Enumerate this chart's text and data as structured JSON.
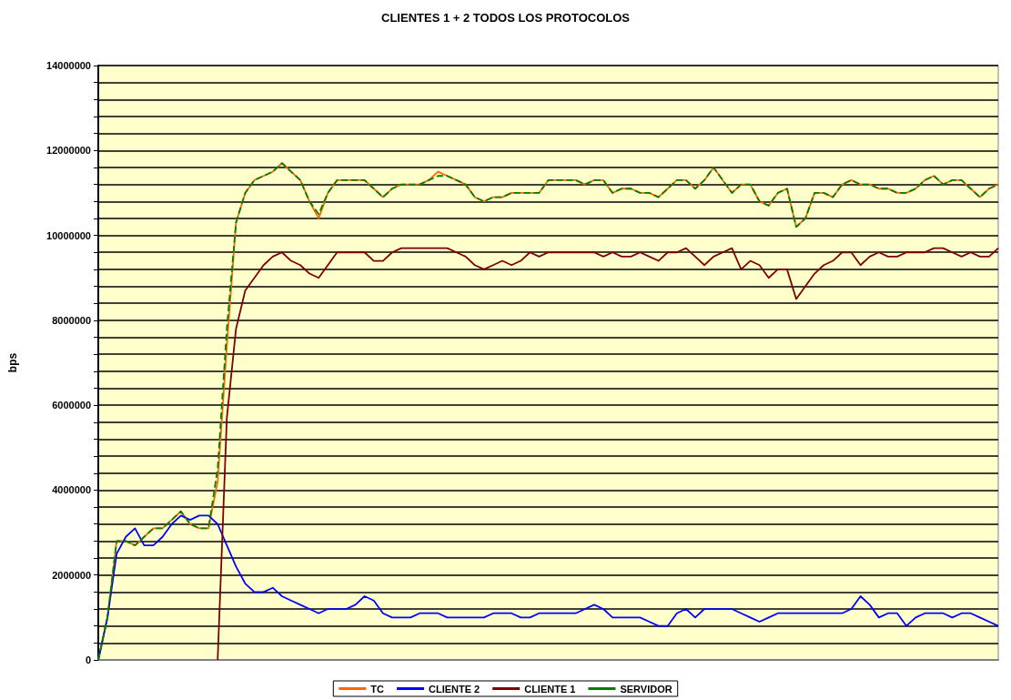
{
  "chart_data": {
    "type": "line",
    "title": "CLIENTES 1 + 2 TODOS LOS PROTOCOLOS",
    "ylabel": "bps",
    "categories": [
      null,
      null,
      null,
      null,
      null,
      null,
      null,
      null,
      null,
      null,
      null,
      null,
      null,
      null,
      null,
      null,
      null,
      null,
      null,
      null,
      null,
      null,
      null,
      null,
      null,
      null,
      null,
      null,
      null,
      null,
      null,
      null,
      null,
      null,
      null,
      null,
      null,
      null,
      null,
      null,
      null,
      null,
      null,
      null,
      null,
      null,
      null,
      null,
      null,
      null,
      null,
      null,
      null,
      null,
      null,
      null,
      null,
      null,
      null,
      null,
      null,
      null,
      null,
      null,
      null,
      null,
      null,
      null,
      null,
      null,
      null,
      null,
      null,
      null,
      null,
      null,
      null,
      null,
      null,
      null,
      null,
      null,
      null,
      null,
      null,
      null,
      null,
      null,
      null,
      null,
      null,
      null,
      null,
      null,
      null,
      null,
      null,
      null,
      null
    ],
    "series": [
      {
        "name": "TC",
        "color": "#ff6600",
        "values": [
          0,
          1000000,
          2800000,
          2800000,
          2700000,
          2900000,
          3100000,
          3100000,
          3300000,
          3500000,
          3200000,
          3100000,
          3100000,
          4200000,
          7400000,
          10300000,
          11000000,
          11300000,
          11400000,
          11500000,
          11700000,
          11500000,
          11300000,
          10800000,
          10400000,
          11000000,
          11300000,
          11300000,
          11300000,
          11300000,
          11100000,
          10900000,
          11100000,
          11200000,
          11200000,
          11200000,
          11300000,
          11500000,
          11400000,
          11300000,
          11200000,
          10900000,
          10800000,
          10900000,
          10900000,
          11000000,
          11000000,
          11000000,
          11000000,
          11300000,
          11300000,
          11300000,
          11300000,
          11200000,
          11300000,
          11300000,
          11000000,
          11100000,
          11100000,
          11000000,
          11000000,
          10900000,
          11100000,
          11300000,
          11300000,
          11100000,
          11300000,
          11600000,
          11300000,
          11000000,
          11200000,
          11200000,
          10800000,
          10700000,
          11000000,
          11100000,
          10200000,
          10400000,
          11000000,
          11000000,
          10900000,
          11200000,
          11300000,
          11200000,
          11200000,
          11100000,
          11100000,
          11000000,
          11000000,
          11100000,
          11300000,
          11400000,
          11200000,
          11300000,
          11300000,
          11100000,
          10900000,
          11100000,
          11200000
        ]
      },
      {
        "name": "CLIENTE 2",
        "color": "#0000ff",
        "values": [
          0,
          1000000,
          2500000,
          2900000,
          3100000,
          2700000,
          2700000,
          2900000,
          3200000,
          3400000,
          3300000,
          3400000,
          3400000,
          3200000,
          2700000,
          2200000,
          1800000,
          1600000,
          1600000,
          1700000,
          1500000,
          1400000,
          1300000,
          1200000,
          1100000,
          1200000,
          1200000,
          1200000,
          1300000,
          1500000,
          1400000,
          1100000,
          1000000,
          1000000,
          1000000,
          1100000,
          1100000,
          1100000,
          1000000,
          1000000,
          1000000,
          1000000,
          1000000,
          1100000,
          1100000,
          1100000,
          1000000,
          1000000,
          1100000,
          1100000,
          1100000,
          1100000,
          1100000,
          1200000,
          1300000,
          1200000,
          1000000,
          1000000,
          1000000,
          1000000,
          900000,
          800000,
          800000,
          1100000,
          1200000,
          1000000,
          1200000,
          1200000,
          1200000,
          1200000,
          1100000,
          1000000,
          900000,
          1000000,
          1100000,
          1100000,
          1100000,
          1100000,
          1100000,
          1100000,
          1100000,
          1100000,
          1200000,
          1500000,
          1300000,
          1000000,
          1100000,
          1100000,
          800000,
          1000000,
          1100000,
          1100000,
          1100000,
          1000000,
          1100000,
          1100000,
          1000000,
          900000,
          800000
        ]
      },
      {
        "name": "CLIENTE 1",
        "color": "#800000",
        "values": [
          null,
          null,
          null,
          null,
          null,
          null,
          null,
          null,
          null,
          null,
          null,
          null,
          null,
          0,
          5700000,
          7800000,
          8700000,
          9000000,
          9300000,
          9500000,
          9600000,
          9400000,
          9300000,
          9100000,
          9000000,
          9300000,
          9600000,
          9600000,
          9600000,
          9600000,
          9400000,
          9400000,
          9600000,
          9700000,
          9700000,
          9700000,
          9700000,
          9700000,
          9700000,
          9600000,
          9500000,
          9300000,
          9200000,
          9300000,
          9400000,
          9300000,
          9400000,
          9600000,
          9500000,
          9600000,
          9600000,
          9600000,
          9600000,
          9600000,
          9600000,
          9500000,
          9600000,
          9500000,
          9500000,
          9600000,
          9500000,
          9400000,
          9600000,
          9600000,
          9700000,
          9500000,
          9300000,
          9500000,
          9600000,
          9700000,
          9200000,
          9400000,
          9300000,
          9000000,
          9200000,
          9200000,
          8500000,
          8800000,
          9100000,
          9300000,
          9400000,
          9600000,
          9600000,
          9300000,
          9500000,
          9600000,
          9500000,
          9500000,
          9600000,
          9600000,
          9600000,
          9700000,
          9700000,
          9600000,
          9500000,
          9600000,
          9500000,
          9500000,
          9700000
        ]
      },
      {
        "name": "SERVIDOR",
        "color": "#008000",
        "line_style": "dashed",
        "values": [
          0,
          1000000,
          2800000,
          2800000,
          2700000,
          2900000,
          3100000,
          3100000,
          3300000,
          3500000,
          3200000,
          3100000,
          3100000,
          4500000,
          7800000,
          10300000,
          11000000,
          11300000,
          11400000,
          11500000,
          11700000,
          11500000,
          11300000,
          10800000,
          10500000,
          11000000,
          11300000,
          11300000,
          11300000,
          11300000,
          11100000,
          10900000,
          11100000,
          11200000,
          11200000,
          11200000,
          11300000,
          11400000,
          11400000,
          11300000,
          11200000,
          10900000,
          10800000,
          10900000,
          10900000,
          11000000,
          11000000,
          11000000,
          11000000,
          11300000,
          11300000,
          11300000,
          11300000,
          11200000,
          11300000,
          11300000,
          11000000,
          11100000,
          11100000,
          11000000,
          11000000,
          10900000,
          11100000,
          11300000,
          11300000,
          11100000,
          11300000,
          11600000,
          11300000,
          11000000,
          11200000,
          11200000,
          10800000,
          10700000,
          11000000,
          11100000,
          10200000,
          10400000,
          11000000,
          11000000,
          10900000,
          11200000,
          11300000,
          11200000,
          11200000,
          11100000,
          11100000,
          11000000,
          11000000,
          11100000,
          11300000,
          11400000,
          11200000,
          11300000,
          11300000,
          11100000,
          10900000,
          11100000,
          11200000
        ]
      }
    ],
    "ylim": [
      0,
      14000000
    ],
    "yticks": [
      0,
      {
        "value": 400000,
        "label": null
      },
      {
        "value": 800000,
        "label": null
      },
      {
        "value": 1200000,
        "label": null
      },
      {
        "value": 1600000,
        "label": null
      },
      2000000,
      {
        "value": 2400000,
        "label": null
      },
      {
        "value": 2800000,
        "label": null
      },
      {
        "value": 3200000,
        "label": null
      },
      {
        "value": 3600000,
        "label": null
      },
      4000000,
      {
        "value": 4400000,
        "label": null
      },
      {
        "value": 4800000,
        "label": null
      },
      {
        "value": 5200000,
        "label": null
      },
      {
        "value": 5600000,
        "label": null
      },
      6000000,
      {
        "value": 6400000,
        "label": null
      },
      {
        "value": 6800000,
        "label": null
      },
      {
        "value": 7200000,
        "label": null
      },
      {
        "value": 7600000,
        "label": null
      },
      8000000,
      {
        "value": 8400000,
        "label": null
      },
      {
        "value": 8800000,
        "label": null
      },
      {
        "value": 9200000,
        "label": null
      },
      {
        "value": 9600000,
        "label": null
      },
      10000000,
      {
        "value": 10400000,
        "label": null
      },
      {
        "value": 10800000,
        "label": null
      },
      {
        "value": 11200000,
        "label": null
      },
      {
        "value": 11600000,
        "label": null
      },
      12000000,
      {
        "value": 12400000,
        "label": null
      },
      {
        "value": 12800000,
        "label": null
      },
      {
        "value": 13200000,
        "label": null
      },
      {
        "value": 13600000,
        "label": null
      },
      14000000
    ],
    "grid": "y",
    "legend": "bottom",
    "tick_labels": "y",
    "marker": "none",
    "line_style": "solid"
  }
}
